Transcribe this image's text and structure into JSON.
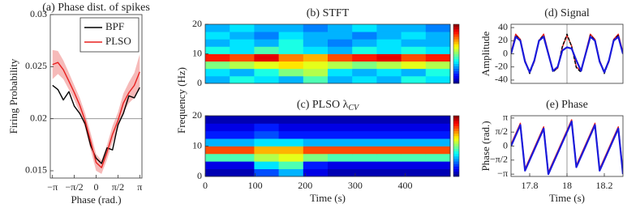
{
  "chart_data": [
    {
      "type": "line",
      "title": "(a) Phase dist. of spikes",
      "xlabel": "Phase (rad.)",
      "ylabel": "Firing Probability",
      "x": [
        -3.14,
        -2.75,
        -2.36,
        -1.96,
        -1.57,
        -1.18,
        -0.79,
        -0.39,
        0,
        0.39,
        0.79,
        1.18,
        1.57,
        1.96,
        2.36,
        2.75,
        3.14
      ],
      "series": [
        {
          "name": "BPF",
          "color": "#000000",
          "values": [
            0.0232,
            0.0228,
            0.0218,
            0.0226,
            0.0212,
            0.0205,
            0.0195,
            0.0174,
            0.0162,
            0.0157,
            0.0172,
            0.017,
            0.0194,
            0.0205,
            0.0222,
            0.022,
            0.023
          ]
        },
        {
          "name": "PLSO",
          "color": "#e8201f",
          "values": [
            0.0252,
            0.0254,
            0.0247,
            0.0236,
            0.0225,
            0.0213,
            0.0198,
            0.0178,
            0.0158,
            0.0153,
            0.0168,
            0.0185,
            0.0198,
            0.0215,
            0.0225,
            0.0232,
            0.0245
          ],
          "band_lower": [
            0.0238,
            0.0243,
            0.0238,
            0.0228,
            0.0218,
            0.0206,
            0.0191,
            0.017,
            0.015,
            0.0147,
            0.0161,
            0.0177,
            0.019,
            0.0206,
            0.0215,
            0.022,
            0.0228
          ],
          "band_upper": [
            0.0266,
            0.0265,
            0.0256,
            0.0244,
            0.0232,
            0.022,
            0.0205,
            0.0186,
            0.0166,
            0.016,
            0.0175,
            0.0193,
            0.0206,
            0.0224,
            0.0235,
            0.0244,
            0.0262
          ],
          "band_color": "#f4a9a8"
        }
      ],
      "xlim": [
        -3.3,
        3.3
      ],
      "ylim": [
        0.0143,
        0.03
      ],
      "xticks": [
        {
          "value": -3.1416,
          "label": "−π"
        },
        {
          "value": -1.5708,
          "label": "−π/2"
        },
        0,
        {
          "value": 1.5708,
          "label": "π/2"
        },
        {
          "value": 3.1416,
          "label": "π"
        }
      ],
      "yticks": [
        0.015,
        0.02,
        0.025,
        0.03
      ],
      "hline": 0.02,
      "legend": "upper right"
    },
    {
      "type": "heatmap",
      "title": "(b) STFT",
      "colormap": "jet",
      "xlim": [
        0,
        490
      ],
      "ylim": [
        0,
        20
      ],
      "yticks": [
        0,
        10,
        20
      ],
      "z": [
        [
          0.3,
          0.4,
          0.35,
          0.3,
          0.45,
          0.3,
          0.35,
          0.3,
          0.4,
          0.35
        ],
        [
          0.35,
          0.3,
          0.4,
          0.5,
          0.55,
          0.35,
          0.3,
          0.35,
          0.3,
          0.4
        ],
        [
          0.5,
          0.55,
          0.6,
          0.65,
          0.6,
          0.55,
          0.5,
          0.55,
          0.6,
          0.55
        ],
        [
          0.85,
          0.8,
          0.9,
          0.75,
          0.7,
          0.8,
          0.85,
          0.9,
          0.8,
          0.85
        ],
        [
          0.4,
          0.35,
          0.45,
          0.4,
          0.35,
          0.3,
          0.4,
          0.35,
          0.4,
          0.35
        ],
        [
          0.3,
          0.35,
          0.3,
          0.4,
          0.3,
          0.25,
          0.3,
          0.35,
          0.3,
          0.3
        ],
        [
          0.35,
          0.3,
          0.25,
          0.35,
          0.3,
          0.3,
          0.25,
          0.3,
          0.35,
          0.3
        ],
        [
          0.3,
          0.35,
          0.3,
          0.3,
          0.25,
          0.3,
          0.35,
          0.3,
          0.3,
          0.25
        ]
      ]
    },
    {
      "type": "heatmap",
      "title": "(c) PLSO λ",
      "title_subscript": "CV",
      "xlabel": "Time (s)",
      "ylabel": "Frequency (Hz)",
      "colormap": "jet",
      "xlim": [
        0,
        490
      ],
      "ylim": [
        0,
        20
      ],
      "xticks": [
        0,
        100,
        200,
        300,
        400
      ],
      "yticks": [
        0,
        10,
        20
      ],
      "z": [
        [
          0.05,
          0.05,
          0.2,
          0.3,
          0.1,
          0.05,
          0.05,
          0.05,
          0.05,
          0.05
        ],
        [
          0.1,
          0.1,
          0.35,
          0.45,
          0.15,
          0.1,
          0.1,
          0.1,
          0.1,
          0.1
        ],
        [
          0.45,
          0.45,
          0.55,
          0.6,
          0.5,
          0.45,
          0.45,
          0.45,
          0.45,
          0.45
        ],
        [
          0.8,
          0.8,
          0.7,
          0.7,
          0.8,
          0.8,
          0.8,
          0.8,
          0.8,
          0.8
        ],
        [
          0.3,
          0.3,
          0.35,
          0.35,
          0.3,
          0.3,
          0.3,
          0.3,
          0.3,
          0.3
        ],
        [
          0.15,
          0.15,
          0.2,
          0.15,
          0.15,
          0.15,
          0.15,
          0.15,
          0.15,
          0.15
        ],
        [
          0.1,
          0.1,
          0.15,
          0.1,
          0.1,
          0.1,
          0.1,
          0.1,
          0.1,
          0.1
        ],
        [
          0.05,
          0.05,
          0.05,
          0.05,
          0.05,
          0.05,
          0.05,
          0.05,
          0.05,
          0.05
        ]
      ]
    },
    {
      "type": "line",
      "title": "(d) Signal",
      "ylabel": "Amplitude",
      "x": [
        17.7,
        17.725,
        17.75,
        17.775,
        17.8,
        17.825,
        17.85,
        17.875,
        17.9,
        17.925,
        17.95,
        17.975,
        18,
        18.025,
        18.05,
        18.075,
        18.1,
        18.125,
        18.15,
        18.175,
        18.2,
        18.225,
        18.25,
        18.275,
        18.3
      ],
      "series": [
        {
          "color": "#e8201f",
          "values": [
            2,
            30,
            22,
            -10,
            -28,
            -12,
            20,
            30,
            2,
            -26,
            -22,
            10,
            28,
            12,
            -20,
            -26,
            2,
            30,
            22,
            -10,
            -28,
            -12,
            22,
            30,
            2
          ]
        },
        {
          "color": "#000000",
          "dashed": true,
          "values": [
            0,
            28,
            21,
            -11,
            -30,
            -11,
            21,
            28,
            0,
            -28,
            -21,
            11,
            30,
            11,
            -21,
            -28,
            0,
            28,
            21,
            -11,
            -30,
            -11,
            21,
            28,
            0
          ]
        },
        {
          "color": "#1a1adb",
          "values": [
            0,
            26,
            20,
            -12,
            -28,
            -10,
            20,
            26,
            0,
            -26,
            -20,
            5,
            10,
            8,
            -10,
            -26,
            0,
            26,
            20,
            -12,
            -28,
            -10,
            20,
            26,
            0
          ]
        }
      ],
      "xlim": [
        17.7,
        18.3
      ],
      "ylim": [
        -45,
        45
      ],
      "yticks": [
        -40,
        -20,
        0,
        20,
        40
      ],
      "vline": 18
    },
    {
      "type": "line",
      "title": "(e) Phase",
      "xlabel": "Time (s)",
      "ylabel": "Phase (rad.)",
      "x": [
        17.7,
        17.725,
        17.75,
        17.775,
        17.8,
        17.825,
        17.85,
        17.875,
        17.9,
        17.925,
        17.95,
        17.975,
        18,
        18.025,
        18.05,
        18.075,
        18.1,
        18.125,
        18.15,
        18.175,
        18.2,
        18.225,
        18.25,
        18.275,
        18.3
      ],
      "series": [
        {
          "color": "#e8201f",
          "values": [
            0.2,
            1.38,
            2.56,
            -2.55,
            -1.37,
            -0.19,
            0.99,
            2.16,
            -2.94,
            -1.76,
            -0.59,
            0.59,
            1.77,
            2.95,
            -2.16,
            -0.98,
            0.2,
            1.38,
            2.56,
            -2.55,
            -1.37,
            -0.19,
            0.99,
            2.16,
            -2.94
          ]
        },
        {
          "color": "#1a1adb",
          "values": [
            0,
            1.18,
            2.36,
            -2.75,
            -1.57,
            -0.39,
            0.79,
            1.96,
            -3.14,
            -1.96,
            -0.79,
            0.39,
            1.57,
            2.75,
            -2.36,
            -1.18,
            0,
            1.18,
            2.36,
            -2.75,
            -1.57,
            -0.39,
            0.79,
            1.96,
            -3.14
          ]
        }
      ],
      "xlim": [
        17.7,
        18.3
      ],
      "ylim": [
        -3.4,
        3.4
      ],
      "xticks": [
        17.8,
        18,
        18.2
      ],
      "yticks": [
        {
          "value": -3.1416,
          "label": "−π"
        },
        {
          "value": -1.5708,
          "label": "−π/2"
        },
        0,
        {
          "value": 1.5708,
          "label": "π/2"
        },
        {
          "value": 3.1416,
          "label": "π"
        }
      ],
      "vline": 18
    }
  ]
}
